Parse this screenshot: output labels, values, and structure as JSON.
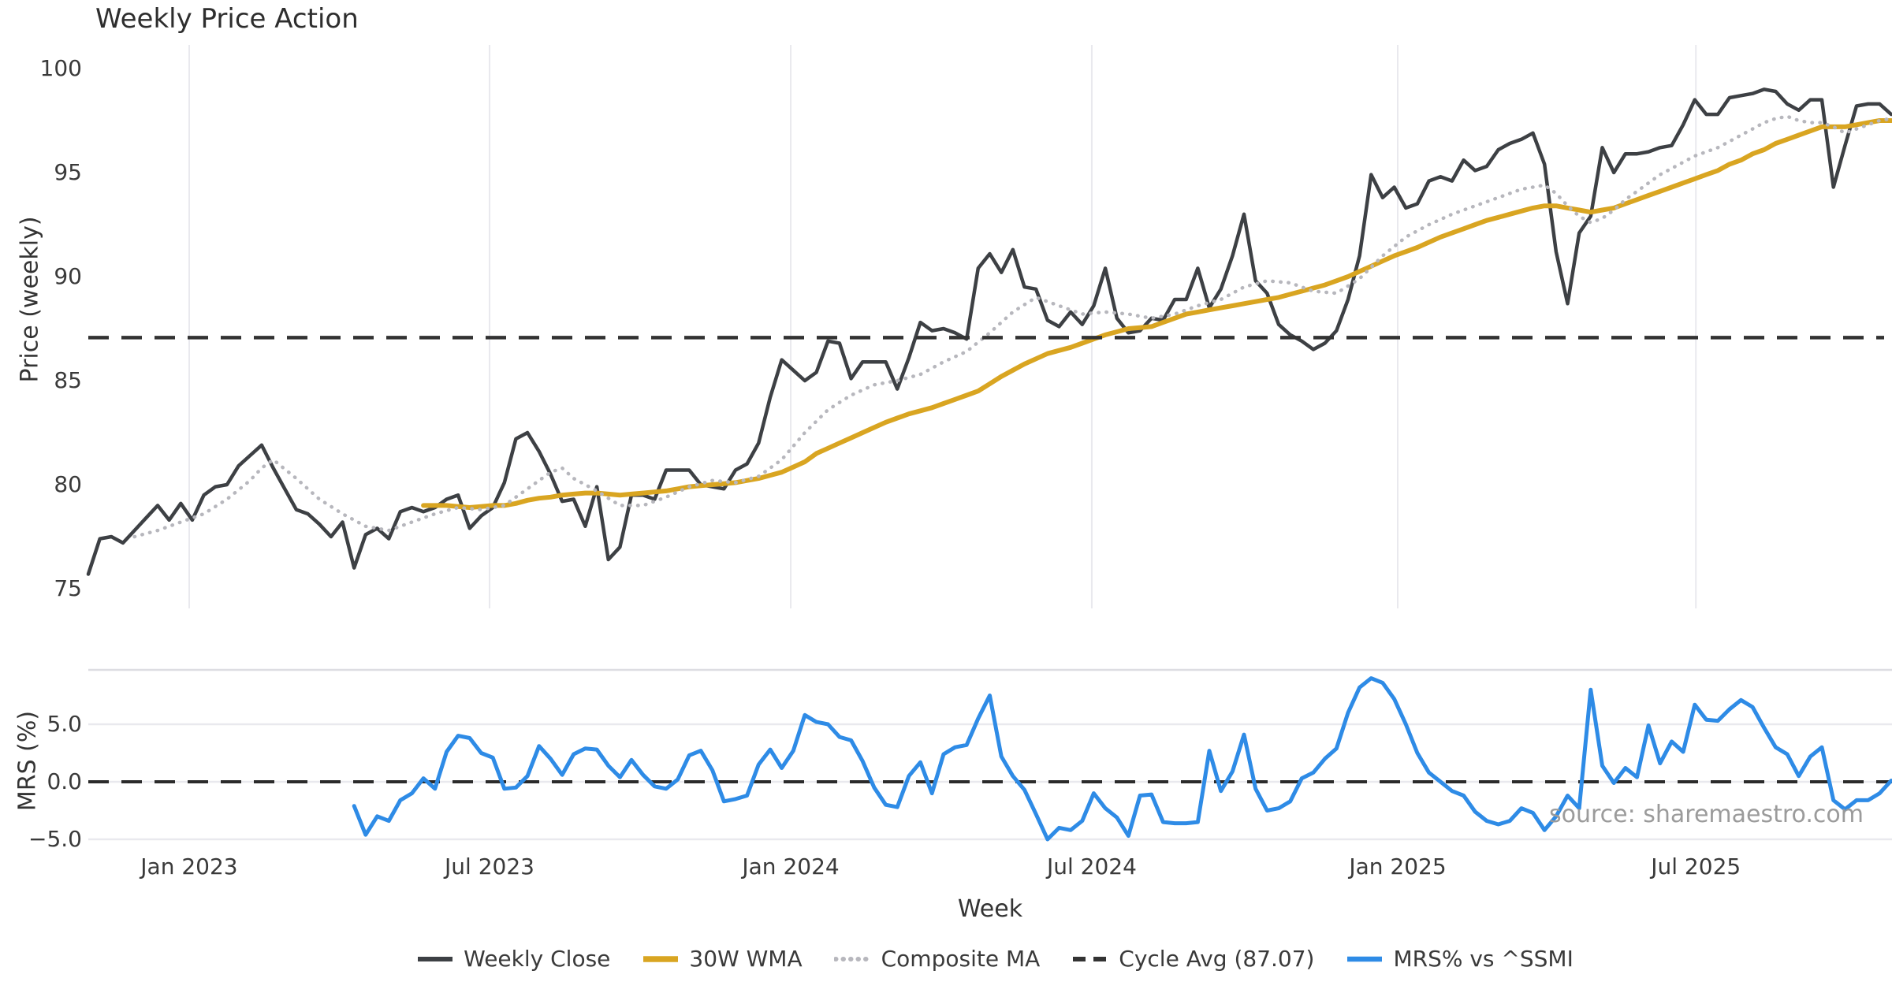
{
  "title": "Weekly Price Action",
  "source_text": "source: sharemaestro.com",
  "chart_data": {
    "type": "line",
    "x": {
      "label": "Week",
      "ticks": [
        "Jan 2023",
        "Jul 2023",
        "Jan 2024",
        "Jul 2024",
        "Jan 2025",
        "Jul 2025"
      ],
      "range_note": "weekly data, ~157 weeks from Nov 2022 to Oct 2025"
    },
    "panels": [
      {
        "name": "price",
        "ylabel": "Price (weekly)",
        "yticks": [
          100,
          95,
          90,
          85,
          80,
          75
        ],
        "ylim": [
          74.5,
          100.5
        ],
        "grid": "vertical"
      },
      {
        "name": "mrs",
        "ylabel": "MRS (%)",
        "ytick_labels": [
          "5.0",
          "0.0",
          "−5.0"
        ],
        "ytick_values": [
          5,
          0,
          -5
        ],
        "ylim": [
          -6.5,
          9.7
        ],
        "grid": "horizontal",
        "zero_line": "dashed"
      }
    ],
    "series": [
      {
        "name": "Weekly Close",
        "panel": "price",
        "color": "#3d4044",
        "style": "solid",
        "width": 4.5,
        "start_week": 0,
        "values": [
          75.7,
          77.4,
          77.5,
          77.2,
          77.8,
          78.4,
          79.0,
          78.3,
          79.1,
          78.3,
          79.5,
          79.9,
          80.0,
          80.9,
          81.4,
          81.9,
          80.8,
          79.8,
          78.8,
          78.6,
          78.1,
          77.5,
          78.2,
          76.0,
          77.6,
          77.9,
          77.4,
          78.7,
          78.9,
          78.7,
          78.9,
          79.3,
          79.5,
          77.9,
          78.5,
          78.9,
          80.1,
          82.2,
          82.5,
          81.6,
          80.5,
          79.2,
          79.3,
          78.0,
          79.9,
          76.4,
          77.0,
          79.5,
          79.5,
          79.3,
          80.7,
          80.7,
          80.7,
          80.0,
          79.9,
          79.8,
          80.7,
          81.0,
          82.0,
          84.2,
          86.0,
          85.5,
          85.0,
          85.4,
          86.9,
          86.8,
          85.1,
          85.9,
          85.9,
          85.9,
          84.6,
          86.1,
          87.8,
          87.4,
          87.5,
          87.3,
          87.0,
          90.4,
          91.1,
          90.2,
          91.3,
          89.5,
          89.4,
          87.9,
          87.6,
          88.3,
          87.7,
          88.6,
          90.4,
          88.0,
          87.3,
          87.4,
          88.0,
          87.9,
          88.9,
          88.9,
          90.4,
          88.5,
          89.4,
          91.0,
          93.0,
          89.8,
          89.2,
          87.7,
          87.2,
          86.9,
          86.5,
          86.8,
          87.4,
          88.9,
          91.0,
          94.9,
          93.8,
          94.3,
          93.3,
          93.5,
          94.6,
          94.8,
          94.6,
          95.6,
          95.1,
          95.3,
          96.1,
          96.4,
          96.6,
          96.9,
          95.4,
          91.2,
          88.7,
          92.1,
          92.9,
          96.2,
          95.0,
          95.9,
          95.9,
          96.0,
          96.2,
          96.3,
          97.3,
          98.5,
          97.8,
          97.8,
          98.6,
          98.7,
          98.8,
          99.0,
          98.9,
          98.3,
          98.0,
          98.5,
          98.5,
          94.3,
          96.3,
          98.2,
          98.3,
          98.3,
          97.8
        ]
      },
      {
        "name": "30W WMA",
        "panel": "price",
        "color": "#d9a521",
        "style": "solid",
        "width": 6,
        "start_week": 29,
        "values": [
          79.0,
          79.0,
          79.0,
          78.95,
          78.9,
          78.95,
          79.0,
          79.0,
          79.1,
          79.25,
          79.35,
          79.4,
          79.5,
          79.55,
          79.6,
          79.6,
          79.55,
          79.5,
          79.55,
          79.6,
          79.65,
          79.7,
          79.8,
          79.9,
          79.95,
          80.0,
          80.05,
          80.1,
          80.2,
          80.3,
          80.45,
          80.6,
          80.85,
          81.1,
          81.5,
          81.75,
          82.0,
          82.25,
          82.5,
          82.75,
          83.0,
          83.2,
          83.4,
          83.55,
          83.7,
          83.9,
          84.1,
          84.3,
          84.5,
          84.85,
          85.2,
          85.5,
          85.8,
          86.05,
          86.3,
          86.45,
          86.6,
          86.8,
          87.0,
          87.2,
          87.35,
          87.5,
          87.55,
          87.6,
          87.8,
          88.0,
          88.2,
          88.3,
          88.4,
          88.5,
          88.6,
          88.7,
          88.8,
          88.9,
          89.0,
          89.15,
          89.3,
          89.45,
          89.6,
          89.8,
          90.0,
          90.25,
          90.5,
          90.75,
          91.0,
          91.2,
          91.4,
          91.65,
          91.9,
          92.1,
          92.3,
          92.5,
          92.7,
          92.85,
          93.0,
          93.15,
          93.3,
          93.4,
          93.4,
          93.3,
          93.2,
          93.1,
          93.2,
          93.3,
          93.5,
          93.7,
          93.9,
          94.1,
          94.3,
          94.5,
          94.7,
          94.9,
          95.1,
          95.4,
          95.6,
          95.9,
          96.1,
          96.4,
          96.6,
          96.8,
          97.0,
          97.2,
          97.2,
          97.2,
          97.3,
          97.4,
          97.5,
          97.5
        ]
      },
      {
        "name": "Composite MA",
        "panel": "price",
        "color": "#b7b7bd",
        "style": "dotted",
        "width": 4.5,
        "start_week": 4,
        "values": [
          77.5,
          77.65,
          77.8,
          78.0,
          78.2,
          78.4,
          78.6,
          78.95,
          79.3,
          79.75,
          80.2,
          80.8,
          81.2,
          80.75,
          80.3,
          79.8,
          79.3,
          78.95,
          78.6,
          78.3,
          78.0,
          77.9,
          77.8,
          78.0,
          78.2,
          78.4,
          78.6,
          78.75,
          78.9,
          78.85,
          78.8,
          78.9,
          79.0,
          79.4,
          79.8,
          80.2,
          80.6,
          80.8,
          80.3,
          80.0,
          79.7,
          79.35,
          79.0,
          79.0,
          79.0,
          79.2,
          79.4,
          79.65,
          79.9,
          80.05,
          80.2,
          80.15,
          80.1,
          80.25,
          80.4,
          80.8,
          81.2,
          81.85,
          82.5,
          83.05,
          83.6,
          83.95,
          84.3,
          84.55,
          84.8,
          84.9,
          85.0,
          85.15,
          85.3,
          85.6,
          85.9,
          86.15,
          86.4,
          86.85,
          87.3,
          87.8,
          88.3,
          88.65,
          89.0,
          88.8,
          88.6,
          88.4,
          88.2,
          88.25,
          88.3,
          88.25,
          88.2,
          88.1,
          88.0,
          88.1,
          88.2,
          88.4,
          88.6,
          88.75,
          88.9,
          89.2,
          89.5,
          89.65,
          89.8,
          89.75,
          89.7,
          89.5,
          89.3,
          89.25,
          89.2,
          89.55,
          89.9,
          90.45,
          91.0,
          91.45,
          91.9,
          92.2,
          92.5,
          92.75,
          93.0,
          93.2,
          93.4,
          93.6,
          93.8,
          94.0,
          94.2,
          94.3,
          94.4,
          94.0,
          93.4,
          92.9,
          92.6,
          92.8,
          93.2,
          93.7,
          94.1,
          94.5,
          94.9,
          95.2,
          95.5,
          95.8,
          96.0,
          96.2,
          96.5,
          96.8,
          97.1,
          97.4,
          97.6,
          97.7,
          97.5,
          97.4,
          97.4,
          97.2,
          96.9,
          97.1,
          97.3,
          97.5,
          97.6
        ]
      },
      {
        "name": "Cycle Avg (87.07)",
        "panel": "price",
        "color": "#333333",
        "style": "dashed",
        "width": 4.5,
        "ref": 87.07
      },
      {
        "name": "MRS% vs ^SSMI",
        "panel": "mrs",
        "color": "#2e8be6",
        "style": "solid",
        "width": 5,
        "start_week": 23,
        "values": [
          -2.1,
          -4.6,
          -3.0,
          -3.4,
          -1.6,
          -1.0,
          0.3,
          -0.6,
          2.6,
          4.0,
          3.8,
          2.5,
          2.1,
          -0.6,
          -0.5,
          0.5,
          3.1,
          2.0,
          0.6,
          2.4,
          2.9,
          2.8,
          1.4,
          0.4,
          1.9,
          0.6,
          -0.4,
          -0.6,
          0.2,
          2.3,
          2.7,
          1.0,
          -1.7,
          -1.5,
          -1.2,
          1.5,
          2.8,
          1.2,
          2.7,
          5.8,
          5.2,
          5.0,
          3.9,
          3.6,
          1.8,
          -0.5,
          -2.0,
          -2.2,
          0.5,
          1.7,
          -1.0,
          2.4,
          3.0,
          3.2,
          5.5,
          7.5,
          2.2,
          0.5,
          -0.7,
          -2.8,
          -5.0,
          -4.0,
          -4.2,
          -3.4,
          -1.0,
          -2.3,
          -3.1,
          -4.7,
          -1.2,
          -1.1,
          -3.5,
          -3.6,
          -3.6,
          -3.5,
          2.7,
          -0.8,
          0.9,
          4.1,
          -0.6,
          -2.5,
          -2.3,
          -1.7,
          0.3,
          0.8,
          2.0,
          2.9,
          6.0,
          8.2,
          9.0,
          8.6,
          7.2,
          5.0,
          2.5,
          0.8,
          0.0,
          -0.8,
          -1.2,
          -2.6,
          -3.4,
          -3.7,
          -3.4,
          -2.3,
          -2.7,
          -4.2,
          -3.0,
          -1.2,
          -2.3,
          8.0,
          1.4,
          -0.1,
          1.2,
          0.4,
          4.9,
          1.6,
          3.5,
          2.6,
          6.7,
          5.4,
          5.3,
          6.3,
          7.1,
          6.5,
          4.7,
          3.0,
          2.4,
          0.5,
          2.2,
          3.0,
          -1.6,
          -2.4,
          -1.6,
          -1.6,
          -1.0,
          0.1
        ]
      }
    ],
    "cycle_avg": 87.07,
    "legend_position": "bottom-center"
  },
  "legend": {
    "items": [
      "Weekly Close",
      "30W WMA",
      "Composite MA",
      "Cycle Avg (87.07)",
      "MRS% vs ^SSMI"
    ]
  },
  "colors": {
    "close": "#3d4044",
    "wma": "#d9a521",
    "composite": "#b7b7bd",
    "cycle_avg": "#333333",
    "mrs": "#2e8be6",
    "grid": "#e9e9ee",
    "panel_border": "#dddde2",
    "source": "#9b9b9b"
  }
}
